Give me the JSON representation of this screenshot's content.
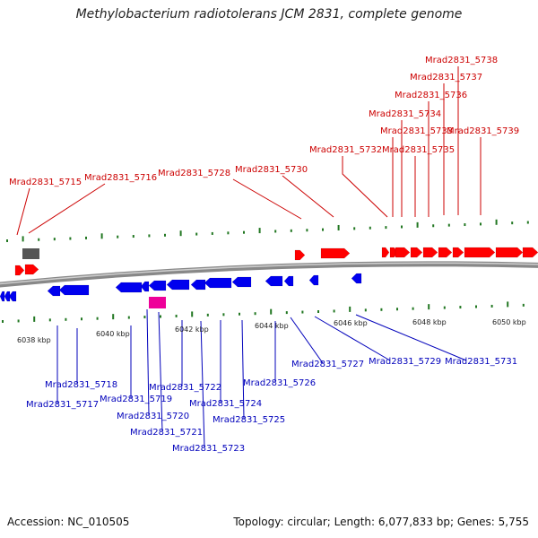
{
  "title": "Methylobacterium radiotolerans JCM 2831, complete genome",
  "footer": {
    "accession": "Accession: NC_010505",
    "topology": "Topology: circular; Length: 6,077,833 bp; Genes: 5,755"
  },
  "colors": {
    "forward": "#ff0000",
    "reverse": "#0000ee",
    "pseudo": "#555555",
    "rna": "#ee0099",
    "label_forward": "#cc0000",
    "label_reverse": "#0000bb",
    "tick": "#227722"
  },
  "kbp_labels": [
    "6038 kbp",
    "6040 kbp",
    "6042 kbp",
    "6044 kbp",
    "6046 kbp",
    "6048 kbp",
    "6050 kbp"
  ],
  "top_labels": [
    "Mrad2831_5715",
    "Mrad2831_5716",
    "Mrad2831_5728",
    "Mrad2831_5730",
    "Mrad2831_5732",
    "Mrad2831_5733",
    "Mrad2831_5734",
    "Mrad2831_5735",
    "Mrad2831_5736",
    "Mrad2831_5737",
    "Mrad2831_5738",
    "Mrad2831_5739"
  ],
  "bottom_labels": [
    "Mrad2831_5717",
    "Mrad2831_5718",
    "Mrad2831_5719",
    "Mrad2831_5720",
    "Mrad2831_5721",
    "Mrad2831_5722",
    "Mrad2831_5723",
    "Mrad2831_5724",
    "Mrad2831_5725",
    "Mrad2831_5726",
    "Mrad2831_5727",
    "Mrad2831_5729",
    "Mrad2831_5731"
  ]
}
